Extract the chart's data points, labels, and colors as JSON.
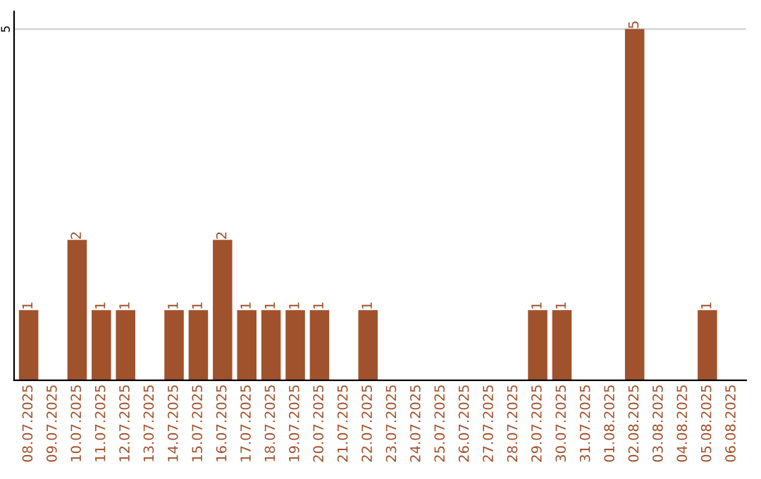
{
  "chart_data": {
    "type": "bar",
    "categories": [
      "08.07.2025",
      "09.07.2025",
      "10.07.2025",
      "11.07.2025",
      "12.07.2025",
      "13.07.2025",
      "14.07.2025",
      "15.07.2025",
      "16.07.2025",
      "17.07.2025",
      "18.07.2025",
      "19.07.2025",
      "20.07.2025",
      "21.07.2025",
      "22.07.2025",
      "23.07.2025",
      "24.07.2025",
      "25.07.2025",
      "26.07.2025",
      "27.07.2025",
      "28.07.2025",
      "29.07.2025",
      "30.07.2025",
      "31.07.2025",
      "01.08.2025",
      "02.08.2025",
      "03.08.2025",
      "04.08.2025",
      "05.08.2025",
      "06.08.2025"
    ],
    "values": [
      1,
      0,
      2,
      1,
      1,
      0,
      1,
      1,
      2,
      1,
      1,
      1,
      1,
      0,
      1,
      0,
      0,
      0,
      0,
      0,
      0,
      1,
      1,
      0,
      0,
      5,
      0,
      0,
      1,
      0
    ],
    "value_labels": [
      "1",
      null,
      "2",
      "1",
      "1",
      null,
      "1",
      "1",
      "2",
      "1",
      "1",
      "1",
      "1",
      null,
      "1",
      null,
      null,
      null,
      null,
      null,
      null,
      "1",
      "1",
      null,
      null,
      "5",
      null,
      null,
      "1",
      null
    ],
    "color": "#a0522d",
    "ylim": [
      0,
      5.25
    ],
    "yticks": [
      5
    ],
    "grid": "y"
  }
}
